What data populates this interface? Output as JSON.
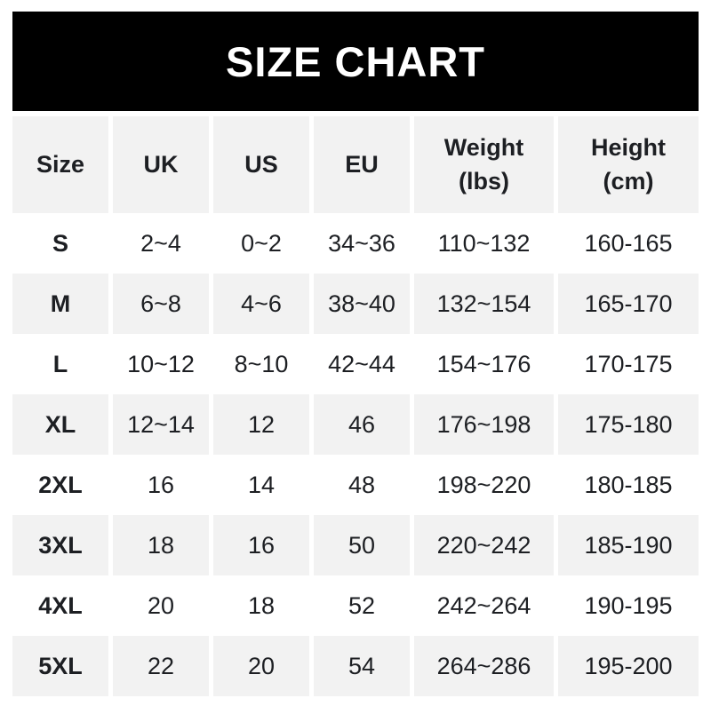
{
  "colors": {
    "banner_background": "#000000",
    "banner_text": "#ffffff",
    "row_stripe": "#f2f2f2",
    "table_text": "#1d1f23",
    "page_background": "#ffffff"
  },
  "table": {
    "header_labels": [
      "Size",
      "UK",
      "US",
      "EU",
      "Weight\n(lbs)",
      "Height\n(cm)"
    ]
  },
  "chart_data": {
    "type": "table",
    "title": "SIZE CHART",
    "columns": [
      "Size",
      "UK",
      "US",
      "EU",
      "Weight (lbs)",
      "Height (cm)"
    ],
    "rows": [
      [
        "S",
        "2~4",
        "0~2",
        "34~36",
        "110~132",
        "160-165"
      ],
      [
        "M",
        "6~8",
        "4~6",
        "38~40",
        "132~154",
        "165-170"
      ],
      [
        "L",
        "10~12",
        "8~10",
        "42~44",
        "154~176",
        "170-175"
      ],
      [
        "XL",
        "12~14",
        "12",
        "46",
        "176~198",
        "175-180"
      ],
      [
        "2XL",
        "16",
        "14",
        "48",
        "198~220",
        "180-185"
      ],
      [
        "3XL",
        "18",
        "16",
        "50",
        "220~242",
        "185-190"
      ],
      [
        "4XL",
        "20",
        "18",
        "52",
        "242~264",
        "190-195"
      ],
      [
        "5XL",
        "22",
        "20",
        "54",
        "264~286",
        "195-200"
      ]
    ]
  }
}
